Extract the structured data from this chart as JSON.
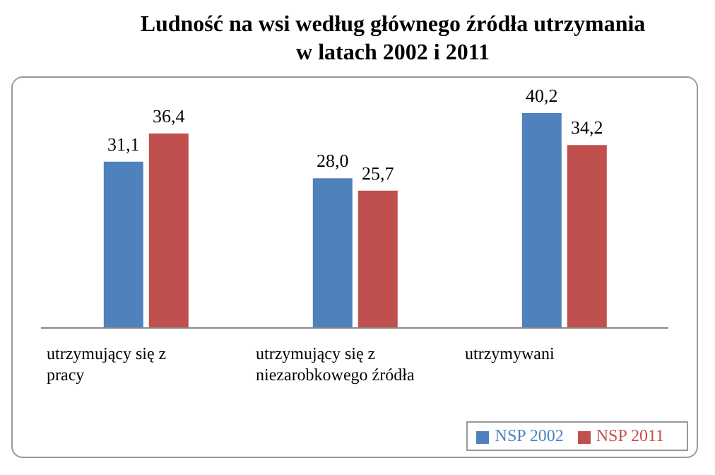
{
  "chart_data": {
    "type": "bar",
    "title": "Ludność na wsi według głównego źródła utrzymania w latach 2002 i 2011",
    "categories": [
      "utrzymujący się z pracy",
      "utrzymujący się z niezarobkowego źródła",
      "utrzymywani"
    ],
    "series": [
      {
        "name": "NSP 2002",
        "color": "#4f81bd",
        "values": [
          31.1,
          28.0,
          40.2
        ],
        "value_labels": [
          "31,1",
          "28,0",
          "40,2"
        ]
      },
      {
        "name": "NSP 2011",
        "color": "#c0504d",
        "values": [
          36.4,
          25.7,
          34.2
        ],
        "value_labels": [
          "36,4",
          "25,7",
          "34,2"
        ]
      }
    ],
    "legend": "bottom right"
  }
}
